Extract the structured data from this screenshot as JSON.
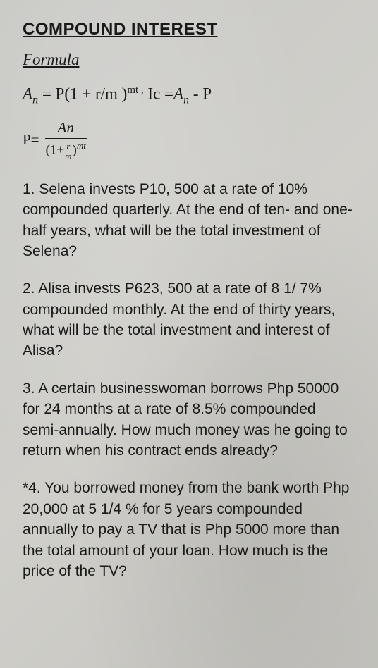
{
  "title": "COMPOUND INTEREST",
  "subtitle": "Formula",
  "formula1": {
    "A": "A",
    "n": "n",
    "eq": " = P(1 + r/m )",
    "mt": "mt ,",
    "ic": " Ic =",
    "A2": "A",
    "n2": "n",
    "tail": " - P"
  },
  "formula2": {
    "peq": "P=",
    "top": "An",
    "bot_open": "(1+",
    "r": "r",
    "m": "m",
    "bot_close": ")",
    "exp": "mt"
  },
  "problems": {
    "p1": "1.    Selena invests P10, 500 at a rate of 10% compounded quarterly. At the end of ten- and one-half years, what will be the total investment of Selena?",
    "p2": "2. Alisa invests P623, 500 at a rate of 8 1/ 7% compounded monthly.  At the end of thirty years, what will be the total investment and interest of Alisa?",
    "p3": "3. A certain businesswoman borrows Php 50000 for 24 months at a rate of 8.5% compounded semi-annually. How much money was he going to return when his contract ends already?",
    "p4": "*4. You borrowed money from the bank worth Php 20,000 at 5 1/4 % for 5 years compounded annually to pay a TV that is Php 5000 more than the total amount of your loan. How much is the price of the TV?"
  },
  "colors": {
    "background": "#c8c8c5",
    "text": "#1a1a1a"
  },
  "typography": {
    "title_size": 24,
    "subtitle_size": 23,
    "body_size": 21,
    "formula_font": "Times New Roman"
  }
}
